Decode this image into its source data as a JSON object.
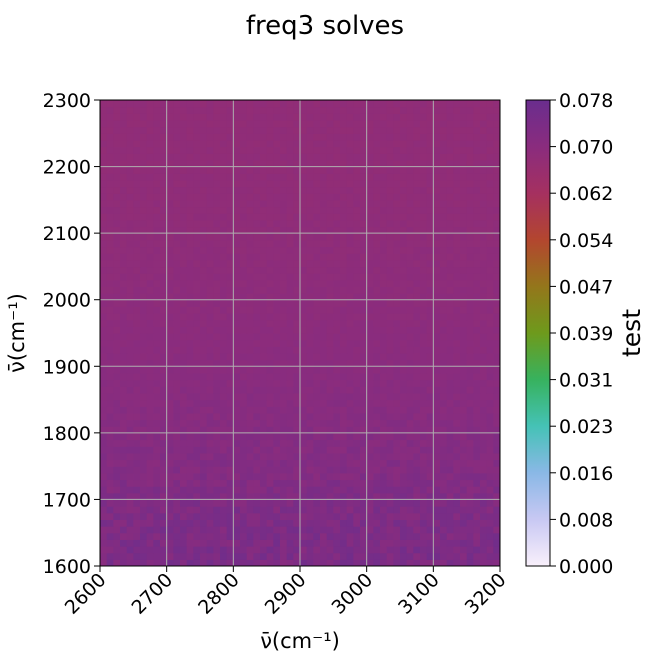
{
  "chart_data": {
    "type": "heatmap",
    "title": "freq3 solves",
    "xlabel": "ν̄(cm⁻¹)",
    "ylabel": "ν̄(cm⁻¹)",
    "xlim": [
      2600,
      3200
    ],
    "ylim": [
      1600,
      2300
    ],
    "x_ticks": [
      "2600",
      "2700",
      "2800",
      "2900",
      "3000",
      "3100",
      "3200"
    ],
    "y_ticks": [
      "1600",
      "1700",
      "1800",
      "1900",
      "2000",
      "2100",
      "2200",
      "2300"
    ],
    "grid": true,
    "colorbar": {
      "label": "test",
      "range": [
        0.0,
        0.078
      ],
      "ticks": [
        "0.000",
        "0.008",
        "0.016",
        "0.023",
        "0.031",
        "0.039",
        "0.047",
        "0.054",
        "0.062",
        "0.070",
        "0.078"
      ],
      "colormap": [
        "#f9f0fb",
        "#c8c8f3",
        "#8ab8e6",
        "#45c2b6",
        "#37b25e",
        "#6e9a1c",
        "#94761b",
        "#b3462f",
        "#a53060",
        "#8a2c7e",
        "#6a2d8e"
      ]
    },
    "values_by_row_bottom_to_top": [
      {
        "y": 1625,
        "value": 0.0735
      },
      {
        "y": 1675,
        "value": 0.073
      },
      {
        "y": 1725,
        "value": 0.0722
      },
      {
        "y": 1775,
        "value": 0.0716
      },
      {
        "y": 1825,
        "value": 0.071
      },
      {
        "y": 1875,
        "value": 0.0705
      },
      {
        "y": 1925,
        "value": 0.07
      },
      {
        "y": 1975,
        "value": 0.0696
      },
      {
        "y": 2025,
        "value": 0.0693
      },
      {
        "y": 2075,
        "value": 0.069
      },
      {
        "y": 2125,
        "value": 0.0688
      },
      {
        "y": 2175,
        "value": 0.0686
      },
      {
        "y": 2225,
        "value": 0.0685
      },
      {
        "y": 2275,
        "value": 0.0684
      }
    ]
  }
}
